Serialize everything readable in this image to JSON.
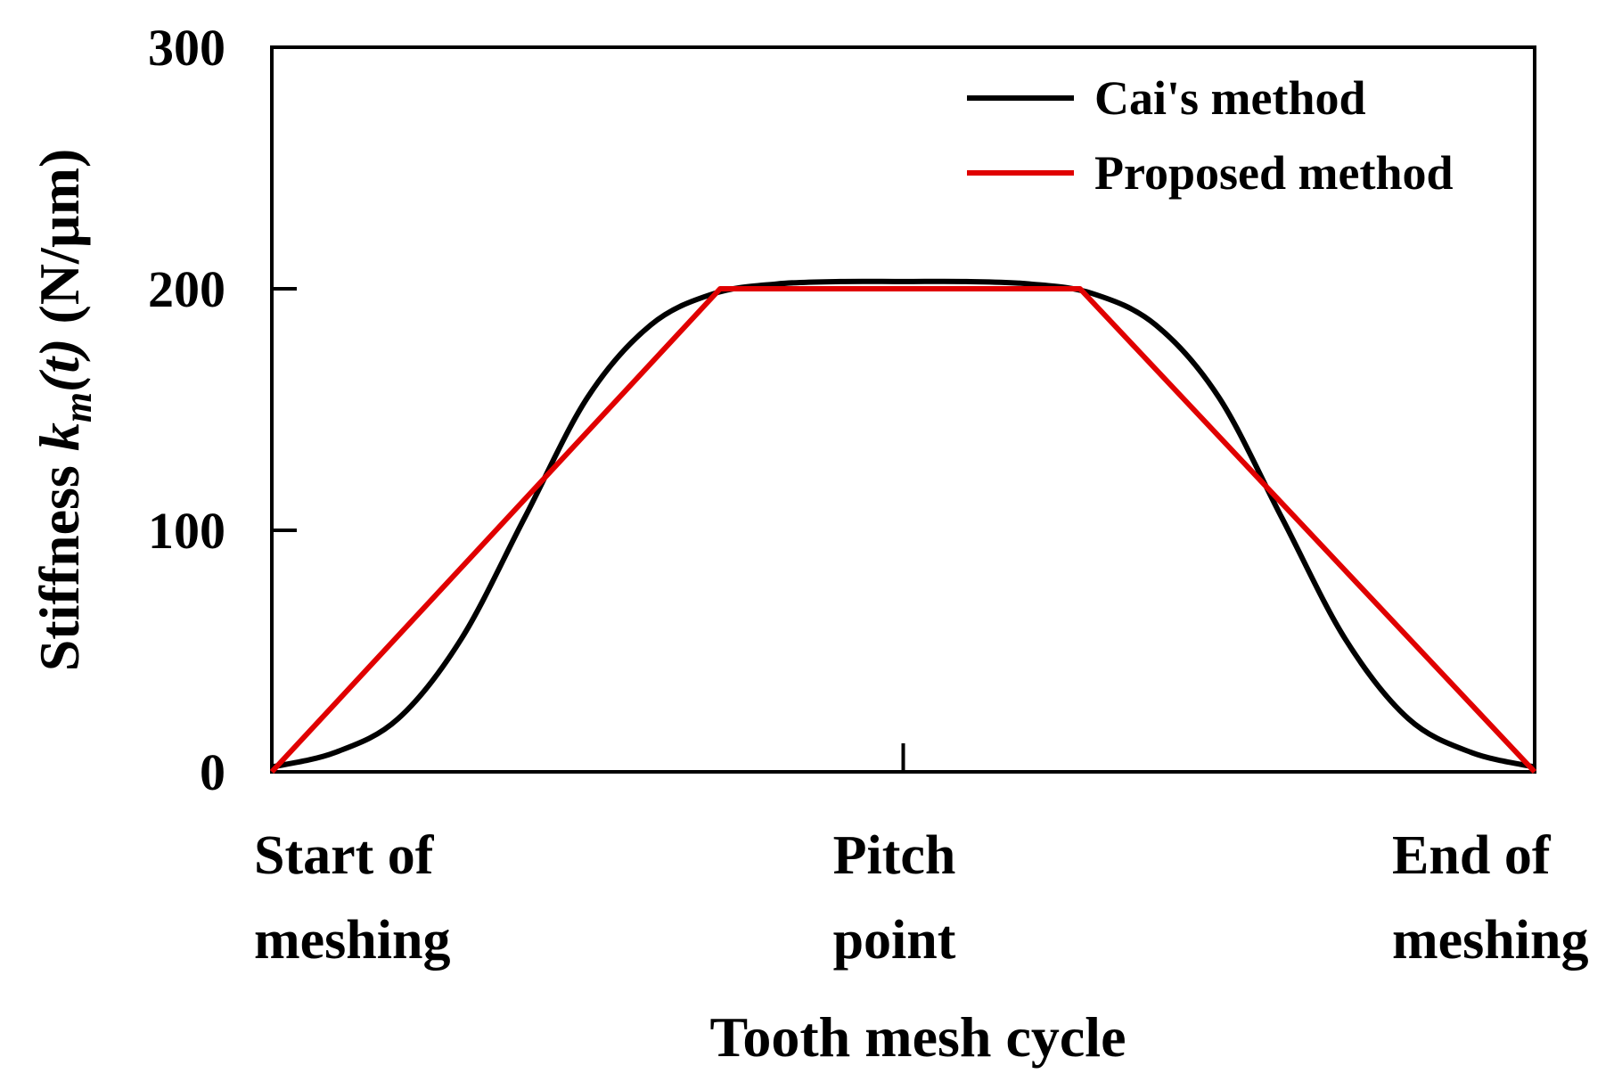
{
  "chart_data": {
    "type": "line",
    "title": "",
    "xlabel": "Tooth mesh cycle",
    "ylabel": {
      "prefix": "Stiffness ",
      "symbol": "k",
      "subscript": "m",
      "arg": "(t)",
      "unit": " (N/µm)"
    },
    "x_range": [
      0,
      1
    ],
    "ylim": [
      0,
      300
    ],
    "yticks": [
      "0",
      "100",
      "200",
      "300"
    ],
    "ytick_values": [
      0,
      100,
      200,
      300
    ],
    "x_categories": [
      {
        "x": 0.0,
        "lines": [
          "Start of",
          "meshing"
        ]
      },
      {
        "x": 0.5,
        "lines": [
          "Pitch",
          "point"
        ]
      },
      {
        "x": 1.0,
        "lines": [
          "End of",
          "meshing"
        ]
      }
    ],
    "legend_position": "top-right",
    "series": [
      {
        "name": "Cai's method",
        "color": "#000000",
        "x": [
          0,
          0.05,
          0.1,
          0.15,
          0.2,
          0.25,
          0.3,
          0.35,
          0.4,
          0.45,
          0.5,
          0.55,
          0.6,
          0.65,
          0.7,
          0.75,
          0.8,
          0.85,
          0.9,
          0.95,
          1.0
        ],
        "y": [
          2,
          8,
          22,
          55,
          105,
          155,
          185,
          198,
          202,
          203,
          203,
          203,
          202,
          198,
          185,
          155,
          105,
          55,
          22,
          8,
          2
        ]
      },
      {
        "name": "Proposed method",
        "color": "#e00000",
        "x": [
          0,
          0.355,
          0.64,
          1.0
        ],
        "y": [
          0,
          200,
          200,
          0
        ]
      }
    ]
  }
}
